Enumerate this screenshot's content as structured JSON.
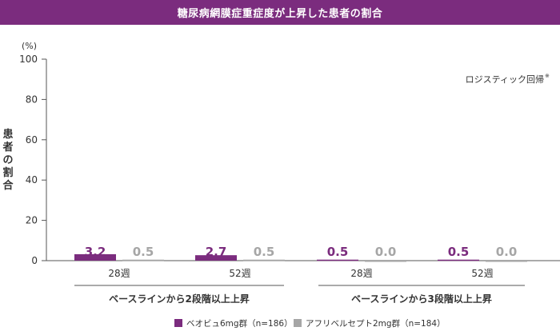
{
  "title": "糖尿病網膜症重症度が上昇した患者の割合",
  "colors": {
    "banner": "#7b2c7e",
    "series_primary": "#7b2c7e",
    "series_secondary": "#a6a6a6",
    "axis": "#555555",
    "text": "#333333"
  },
  "chart_data": {
    "type": "bar",
    "unit": "(%)",
    "ylabel": "患者の割合",
    "ylim": [
      0,
      100
    ],
    "yticks": [
      0,
      20,
      40,
      60,
      80,
      100
    ],
    "grid": false,
    "note": "ロジスティック回帰",
    "note_mark": "※",
    "categories": [
      "28週",
      "52週",
      "28週",
      "52週"
    ],
    "groups": [
      {
        "label": "ベースラインから2段階以上上昇"
      },
      {
        "label": "ベースラインから3段階以上上昇"
      }
    ],
    "series": [
      {
        "name": "ベオビュ6mg群（n=186）",
        "values": [
          3.2,
          2.7,
          0.5,
          0.5
        ],
        "labels": [
          "3.2",
          "2.7",
          "0.5",
          "0.5"
        ]
      },
      {
        "name": "アフリベルセプト2mg群（n=184）",
        "values": [
          0.5,
          0.5,
          0.0,
          0.0
        ],
        "labels": [
          "0.5",
          "0.5",
          "0.0",
          "0.0"
        ]
      }
    ],
    "legend_position": "bottom"
  }
}
